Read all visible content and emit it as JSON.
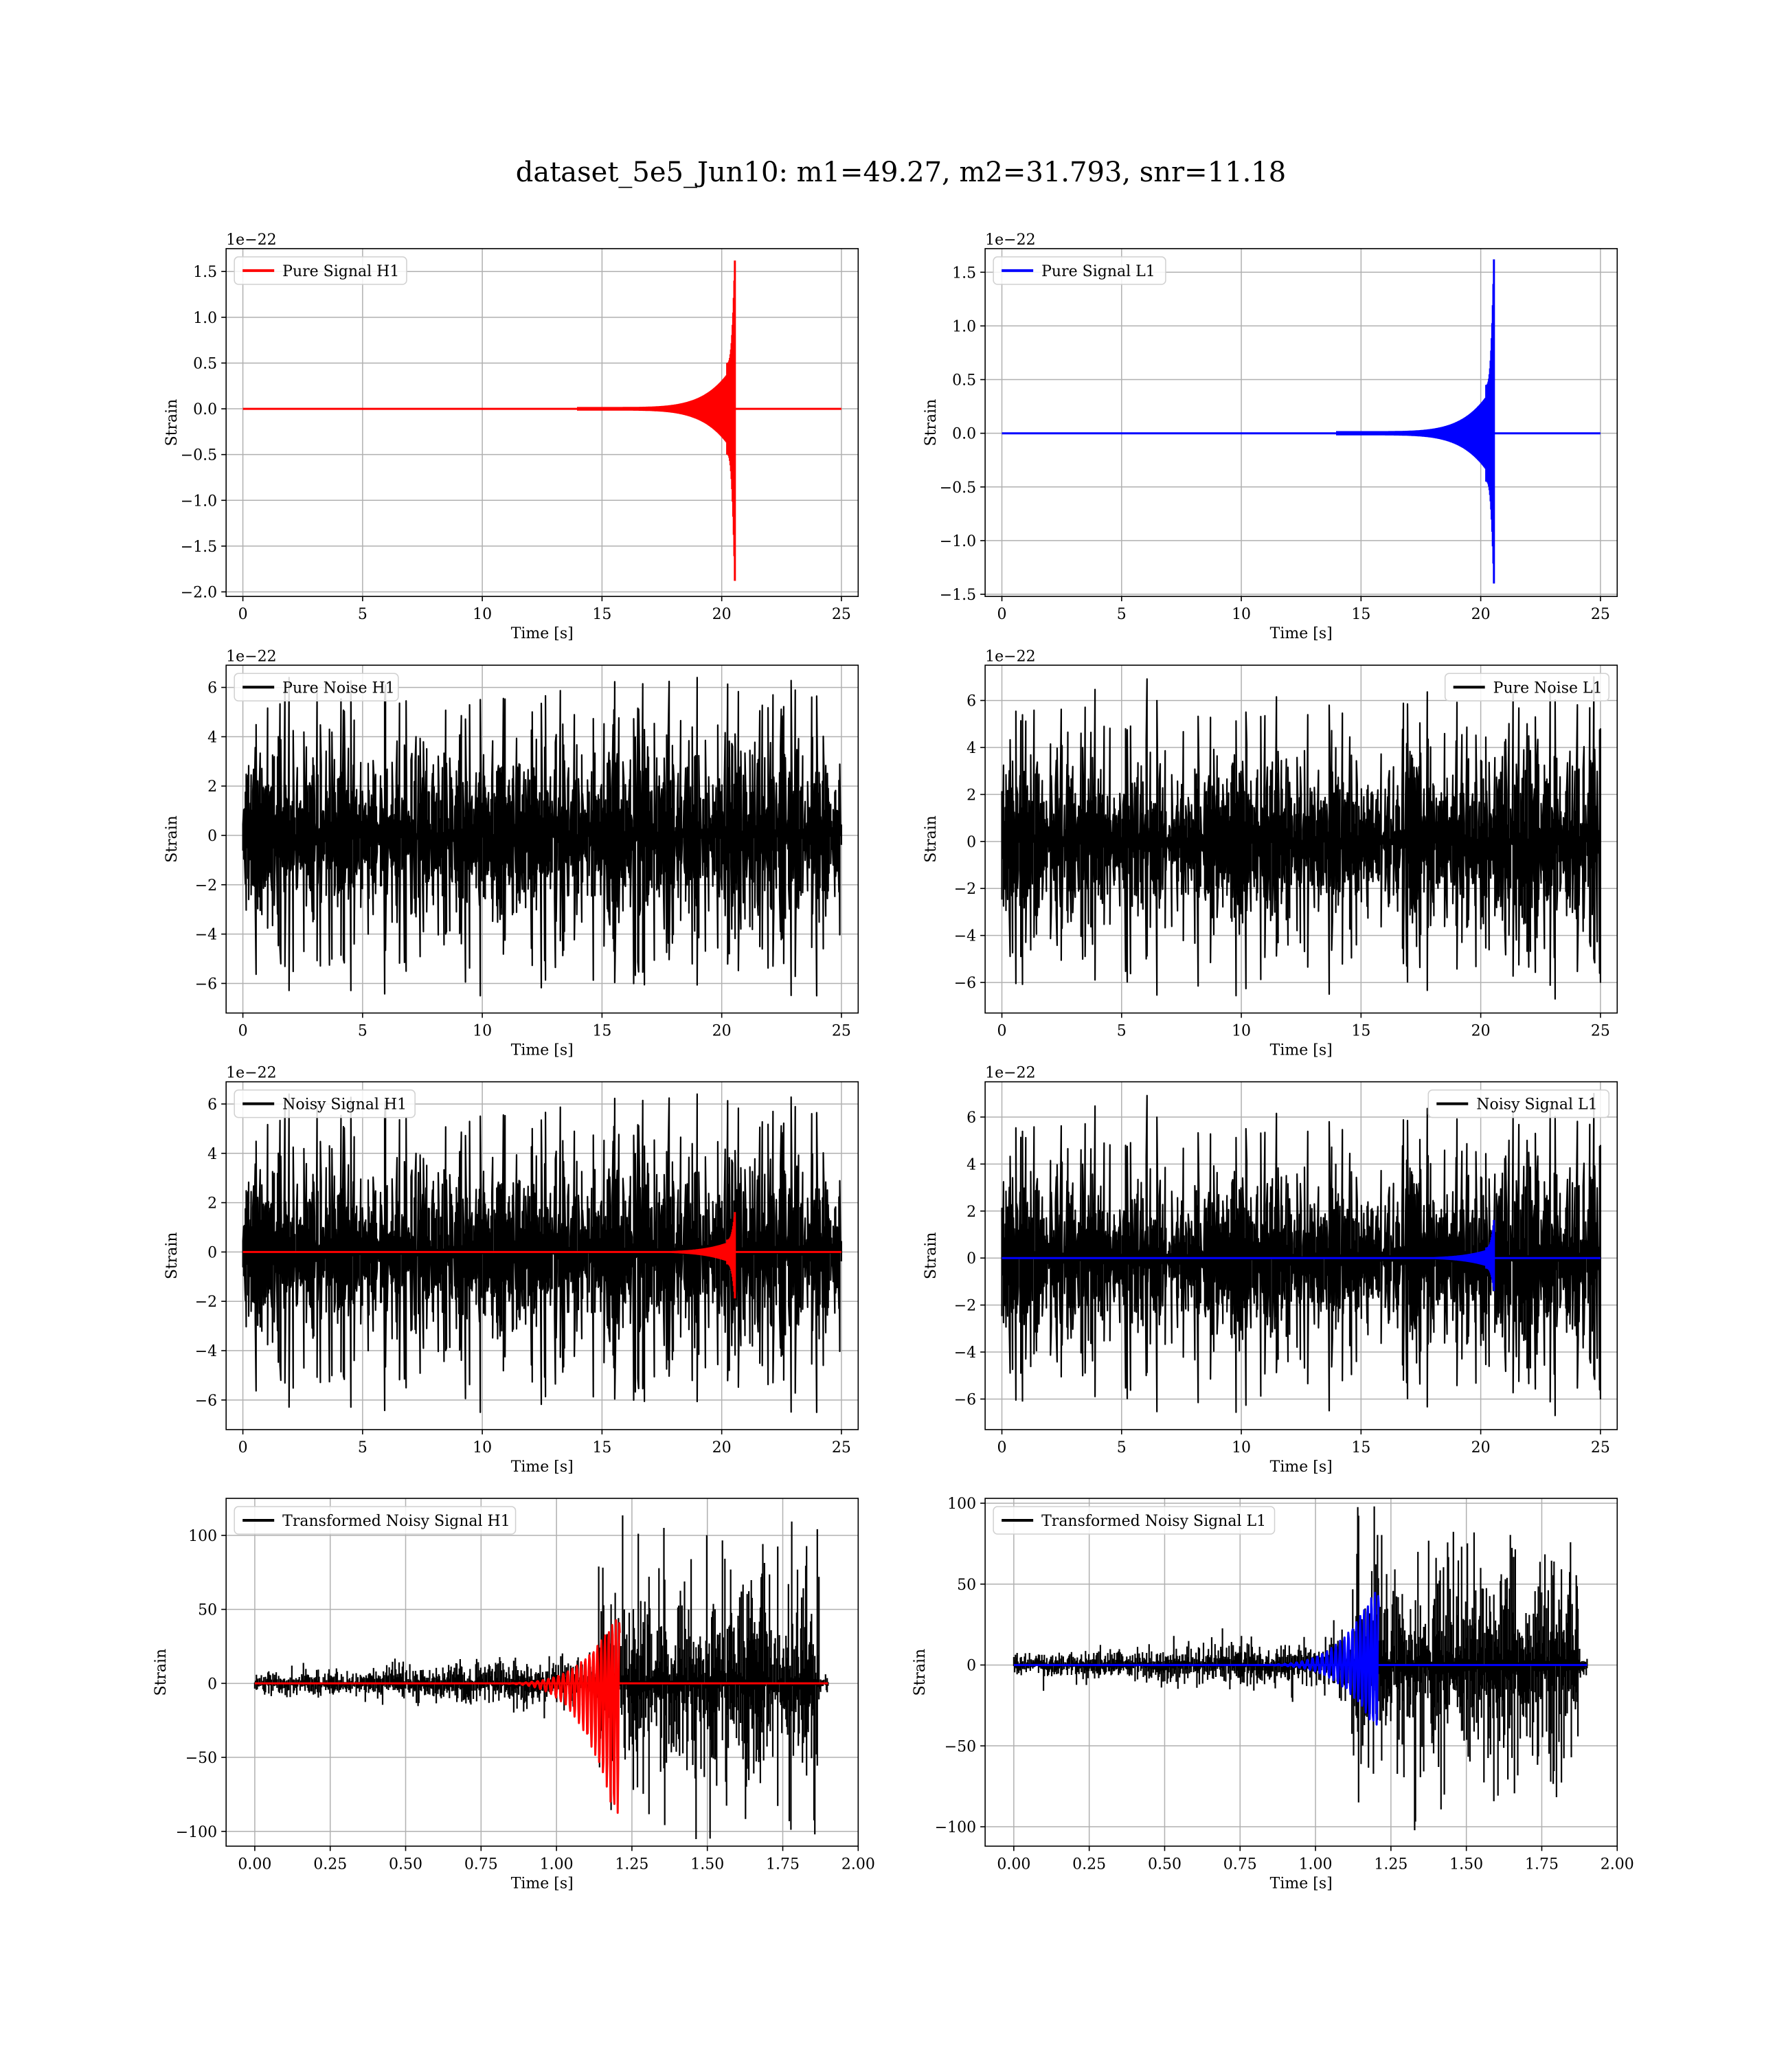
{
  "title": "dataset_5e5_Jun10: m1=49.27, m2=31.793, snr=11.18",
  "colors": {
    "h1_signal": "#ff0000",
    "l1_signal": "#0000ff",
    "noise": "#000000",
    "grid": "#b0b0b0"
  },
  "chart_data": [
    {
      "type": "line",
      "id": "pure-signal-h1",
      "xlabel": "Time [s]",
      "ylabel": "Strain",
      "scale_label": "1e−22",
      "xlim": [
        -0.7,
        25.7
      ],
      "ylim": [
        -2.05,
        1.75
      ],
      "xticks": [
        0,
        5,
        10,
        15,
        20,
        25
      ],
      "xtick_labels": [
        "0",
        "5",
        "10",
        "15",
        "20",
        "25"
      ],
      "yticks": [
        -2.0,
        -1.5,
        -1.0,
        -0.5,
        0.0,
        0.5,
        1.0,
        1.5
      ],
      "ytick_labels": [
        "−2.0",
        "−1.5",
        "−1.0",
        "−0.5",
        "0.0",
        "0.5",
        "1.0",
        "1.5"
      ],
      "legend": {
        "location": "upper-left"
      },
      "grid": true,
      "series": [
        {
          "name": "Pure Signal H1",
          "kind": "chirp",
          "color": "h1_signal",
          "t_start": 0,
          "t_end": 25,
          "t_merge": 20.55,
          "envelope_onset": 14.0,
          "amp_early": 0.02,
          "amp_mid": 0.5,
          "peak_pos": 1.62,
          "peak_neg": -1.88
        }
      ]
    },
    {
      "type": "line",
      "id": "pure-signal-l1",
      "xlabel": "Time [s]",
      "ylabel": "Strain",
      "scale_label": "1e−22",
      "xlim": [
        -0.7,
        25.7
      ],
      "ylim": [
        -1.52,
        1.72
      ],
      "xticks": [
        0,
        5,
        10,
        15,
        20,
        25
      ],
      "xtick_labels": [
        "0",
        "5",
        "10",
        "15",
        "20",
        "25"
      ],
      "yticks": [
        -1.5,
        -1.0,
        -0.5,
        0.0,
        0.5,
        1.0,
        1.5
      ],
      "ytick_labels": [
        "−1.5",
        "−1.0",
        "−0.5",
        "0.0",
        "0.5",
        "1.0",
        "1.5"
      ],
      "legend": {
        "location": "upper-left"
      },
      "grid": true,
      "series": [
        {
          "name": "Pure Signal L1",
          "kind": "chirp",
          "color": "l1_signal",
          "t_start": 0,
          "t_end": 25,
          "t_merge": 20.55,
          "envelope_onset": 14.0,
          "amp_early": 0.02,
          "amp_mid": 0.45,
          "peak_pos": 1.62,
          "peak_neg": -1.4
        }
      ]
    },
    {
      "type": "line",
      "id": "pure-noise-h1",
      "xlabel": "Time [s]",
      "ylabel": "Strain",
      "scale_label": "1e−22",
      "xlim": [
        -0.7,
        25.7
      ],
      "ylim": [
        -7.2,
        6.9
      ],
      "xticks": [
        0,
        5,
        10,
        15,
        20,
        25
      ],
      "xtick_labels": [
        "0",
        "5",
        "10",
        "15",
        "20",
        "25"
      ],
      "yticks": [
        -6,
        -4,
        -2,
        0,
        2,
        4,
        6
      ],
      "ytick_labels": [
        "−6",
        "−4",
        "−2",
        "0",
        "2",
        "4",
        "6"
      ],
      "legend": {
        "location": "upper-left"
      },
      "grid": true,
      "series": [
        {
          "name": "Pure Noise H1",
          "kind": "noise",
          "color": "noise",
          "t_start": 0,
          "t_end": 25,
          "band": 3.6,
          "max": 6.4,
          "min": -6.5,
          "seed": 11
        }
      ]
    },
    {
      "type": "line",
      "id": "pure-noise-l1",
      "xlabel": "Time [s]",
      "ylabel": "Strain",
      "scale_label": "1e−22",
      "xlim": [
        -0.7,
        25.7
      ],
      "ylim": [
        -7.3,
        7.5
      ],
      "xticks": [
        0,
        5,
        10,
        15,
        20,
        25
      ],
      "xtick_labels": [
        "0",
        "5",
        "10",
        "15",
        "20",
        "25"
      ],
      "yticks": [
        -6,
        -4,
        -2,
        0,
        2,
        4,
        6
      ],
      "ytick_labels": [
        "−6",
        "−4",
        "−2",
        "0",
        "2",
        "4",
        "6"
      ],
      "legend": {
        "location": "upper-right"
      },
      "grid": true,
      "series": [
        {
          "name": "Pure Noise L1",
          "kind": "noise",
          "color": "noise",
          "t_start": 0,
          "t_end": 25,
          "band": 3.6,
          "max": 7.0,
          "min": -6.7,
          "seed": 23
        }
      ]
    },
    {
      "type": "line",
      "id": "noisy-signal-h1",
      "xlabel": "Time [s]",
      "ylabel": "Strain",
      "scale_label": "1e−22",
      "xlim": [
        -0.7,
        25.7
      ],
      "ylim": [
        -7.2,
        6.9
      ],
      "xticks": [
        0,
        5,
        10,
        15,
        20,
        25
      ],
      "xtick_labels": [
        "0",
        "5",
        "10",
        "15",
        "20",
        "25"
      ],
      "yticks": [
        -6,
        -4,
        -2,
        0,
        2,
        4,
        6
      ],
      "ytick_labels": [
        "−6",
        "−4",
        "−2",
        "0",
        "2",
        "4",
        "6"
      ],
      "legend": {
        "location": "upper-left"
      },
      "grid": true,
      "series": [
        {
          "name": "Noisy Signal H1",
          "kind": "noise",
          "color": "noise",
          "t_start": 0,
          "t_end": 25,
          "band": 3.6,
          "max": 6.4,
          "min": -6.5,
          "seed": 11
        },
        {
          "kind": "chirp",
          "color": "h1_signal",
          "t_start": 0,
          "t_end": 25,
          "t_merge": 20.55,
          "envelope_onset": 14.0,
          "amp_early": 0.02,
          "amp_mid": 0.5,
          "peak_pos": 1.62,
          "peak_neg": -1.88
        }
      ]
    },
    {
      "type": "line",
      "id": "noisy-signal-l1",
      "xlabel": "Time [s]",
      "ylabel": "Strain",
      "scale_label": "1e−22",
      "xlim": [
        -0.7,
        25.7
      ],
      "ylim": [
        -7.3,
        7.5
      ],
      "xticks": [
        0,
        5,
        10,
        15,
        20,
        25
      ],
      "xtick_labels": [
        "0",
        "5",
        "10",
        "15",
        "20",
        "25"
      ],
      "yticks": [
        -6,
        -4,
        -2,
        0,
        2,
        4,
        6
      ],
      "ytick_labels": [
        "−6",
        "−4",
        "−2",
        "0",
        "2",
        "4",
        "6"
      ],
      "legend": {
        "location": "upper-right"
      },
      "grid": true,
      "series": [
        {
          "name": "Noisy Signal L1",
          "kind": "noise",
          "color": "noise",
          "t_start": 0,
          "t_end": 25,
          "band": 3.6,
          "max": 7.0,
          "min": -6.7,
          "seed": 23
        },
        {
          "kind": "chirp",
          "color": "l1_signal",
          "t_start": 0,
          "t_end": 25,
          "t_merge": 20.55,
          "envelope_onset": 14.0,
          "amp_early": 0.02,
          "amp_mid": 0.45,
          "peak_pos": 1.62,
          "peak_neg": -1.4
        }
      ]
    },
    {
      "type": "line",
      "id": "transformed-noisy-signal-h1",
      "xlabel": "Time [s]",
      "ylabel": "Strain",
      "scale_label": "",
      "xlim": [
        -0.095,
        2.0
      ],
      "ylim": [
        -110,
        125
      ],
      "xticks": [
        0.0,
        0.25,
        0.5,
        0.75,
        1.0,
        1.25,
        1.5,
        1.75,
        2.0
      ],
      "xtick_labels": [
        "0.00",
        "0.25",
        "0.50",
        "0.75",
        "1.00",
        "1.25",
        "1.50",
        "1.75",
        "2.00"
      ],
      "yticks": [
        -100,
        -50,
        0,
        50,
        100
      ],
      "ytick_labels": [
        "−100",
        "−50",
        "0",
        "50",
        "100"
      ],
      "legend": {
        "location": "upper-left"
      },
      "grid": true,
      "series": [
        {
          "name": "Transformed Noisy Signal H1",
          "kind": "whitened_noise",
          "color": "noise",
          "t_start": 0,
          "t_end": 1.9,
          "t_burst": 1.14,
          "t_cut": 1.87,
          "amp_pre": 5,
          "amp_post": 45,
          "max": 117,
          "min": -107,
          "seed": 5
        },
        {
          "kind": "whitened_chirp",
          "color": "h1_signal",
          "t_start": 0,
          "t_end": 1.9,
          "t_merge": 1.19,
          "peak_pos": 43,
          "peak_neg": -88
        }
      ]
    },
    {
      "type": "line",
      "id": "transformed-noisy-signal-l1",
      "xlabel": "Time [s]",
      "ylabel": "Strain",
      "scale_label": "",
      "xlim": [
        -0.095,
        2.0
      ],
      "ylim": [
        -112,
        103
      ],
      "xticks": [
        0.0,
        0.25,
        0.5,
        0.75,
        1.0,
        1.25,
        1.5,
        1.75,
        2.0
      ],
      "xtick_labels": [
        "0.00",
        "0.25",
        "0.50",
        "0.75",
        "1.00",
        "1.25",
        "1.50",
        "1.75",
        "2.00"
      ],
      "yticks": [
        -100,
        -50,
        0,
        50,
        100
      ],
      "ytick_labels": [
        "−100",
        "−50",
        "0",
        "50",
        "100"
      ],
      "legend": {
        "location": "upper-left"
      },
      "grid": true,
      "series": [
        {
          "name": "Transformed Noisy Signal L1",
          "kind": "whitened_noise",
          "color": "noise",
          "t_start": 0,
          "t_end": 1.9,
          "t_burst": 1.12,
          "t_cut": 1.87,
          "amp_pre": 5,
          "amp_post": 45,
          "max": 98,
          "min": -109,
          "seed": 9
        },
        {
          "kind": "whitened_chirp",
          "color": "l1_signal",
          "t_start": 0,
          "t_end": 1.9,
          "t_merge": 1.19,
          "peak_pos": 45,
          "peak_neg": -37
        }
      ]
    }
  ]
}
